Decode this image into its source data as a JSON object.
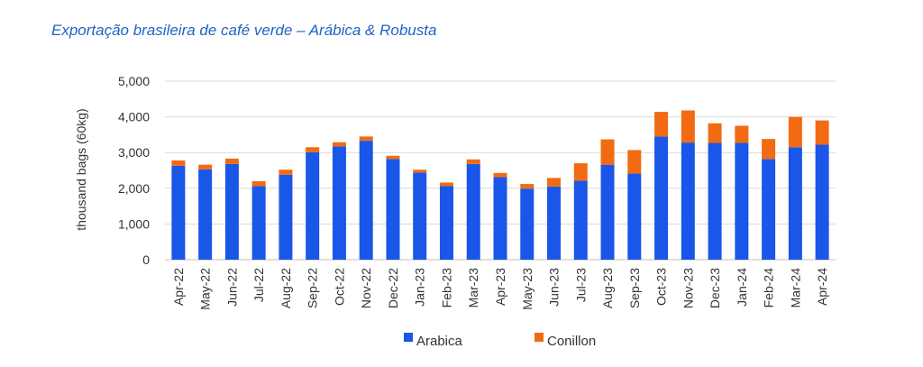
{
  "title": "Exportação brasileira de café verde – Arábica & Robusta",
  "chart_data": {
    "type": "bar",
    "stacked": true,
    "title": "Exportação brasileira de café verde – Arábica & Robusta",
    "xlabel": "",
    "ylabel": "thousand bags (60kg)",
    "ylim": [
      0,
      5000
    ],
    "yticks": [
      0,
      1000,
      2000,
      3000,
      4000,
      5000
    ],
    "ytick_labels": [
      "0",
      "1,000",
      "2,000",
      "3,000",
      "4,000",
      "5,000"
    ],
    "grid": true,
    "legend_position": "bottom",
    "categories": [
      "Apr-22",
      "May-22",
      "Jun-22",
      "Jul-22",
      "Aug-22",
      "Sep-22",
      "Oct-22",
      "Nov-22",
      "Dec-22",
      "Jan-23",
      "Feb-23",
      "Mar-23",
      "Apr-23",
      "May-23",
      "Jun-23",
      "Jul-23",
      "Aug-23",
      "Sep-23",
      "Oct-23",
      "Nov-23",
      "Dec-23",
      "Jan-24",
      "Feb-24",
      "Mar-24",
      "Apr-24"
    ],
    "series": [
      {
        "name": "Arabica",
        "color": "#1a56e8",
        "values": [
          2630,
          2530,
          2680,
          2060,
          2380,
          3010,
          3170,
          3330,
          2820,
          2440,
          2060,
          2680,
          2310,
          1990,
          2050,
          2210,
          2660,
          2410,
          3450,
          3280,
          3270,
          3270,
          2820,
          3150,
          3220
        ]
      },
      {
        "name": "Conillon",
        "color": "#f26b12",
        "values": [
          150,
          130,
          150,
          140,
          140,
          140,
          120,
          120,
          90,
          80,
          100,
          130,
          120,
          130,
          240,
          490,
          710,
          660,
          690,
          900,
          550,
          480,
          560,
          850,
          680
        ]
      }
    ]
  }
}
